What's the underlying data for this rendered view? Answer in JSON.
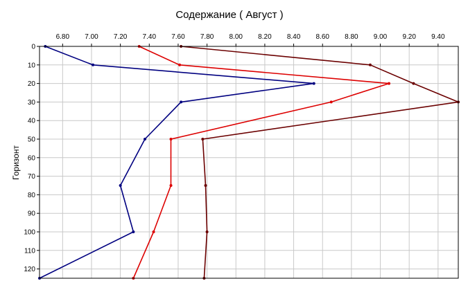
{
  "chart_data": {
    "type": "line",
    "title": "Содержание    ( Август )",
    "xlabel": "",
    "ylabel": "Горизонт",
    "xlim": [
      6.64,
      9.54
    ],
    "ylim": [
      125,
      0
    ],
    "x_ticks": [
      "6.80",
      "7.00",
      "7.20",
      "7.40",
      "7.60",
      "7.80",
      "8.00",
      "8.20",
      "8.40",
      "8.60",
      "8.80",
      "9.00",
      "9.20",
      "9.40"
    ],
    "x_tick_values": [
      6.8,
      7.0,
      7.2,
      7.4,
      7.6,
      7.8,
      8.0,
      8.2,
      8.4,
      8.6,
      8.8,
      9.0,
      9.2,
      9.4
    ],
    "y_ticks": [
      "0",
      "10",
      "20",
      "30",
      "40",
      "50",
      "60",
      "70",
      "80",
      "90",
      "100",
      "110",
      "120"
    ],
    "y_tick_values": [
      0,
      10,
      20,
      30,
      40,
      50,
      60,
      70,
      80,
      90,
      100,
      110,
      120
    ],
    "x_axis_position": "top",
    "grid": true,
    "legend": "none",
    "series": [
      {
        "color": "#000080",
        "points": [
          [
            6.68,
            0
          ],
          [
            7.01,
            10
          ],
          [
            8.54,
            20
          ],
          [
            7.62,
            30
          ],
          [
            7.37,
            50
          ],
          [
            7.2,
            75
          ],
          [
            7.29,
            100
          ],
          [
            6.64,
            125
          ]
        ]
      },
      {
        "color": "#dd0000",
        "points": [
          [
            7.33,
            0
          ],
          [
            7.61,
            10
          ],
          [
            9.06,
            20
          ],
          [
            8.66,
            30
          ],
          [
            7.55,
            50
          ],
          [
            7.55,
            75
          ],
          [
            7.43,
            100
          ],
          [
            7.29,
            125
          ]
        ]
      },
      {
        "color": "#6b0000",
        "points": [
          [
            7.62,
            0
          ],
          [
            8.93,
            10
          ],
          [
            9.23,
            20
          ],
          [
            9.54,
            30
          ],
          [
            7.77,
            50
          ],
          [
            7.79,
            75
          ],
          [
            7.8,
            100
          ],
          [
            7.78,
            125
          ]
        ]
      }
    ]
  }
}
